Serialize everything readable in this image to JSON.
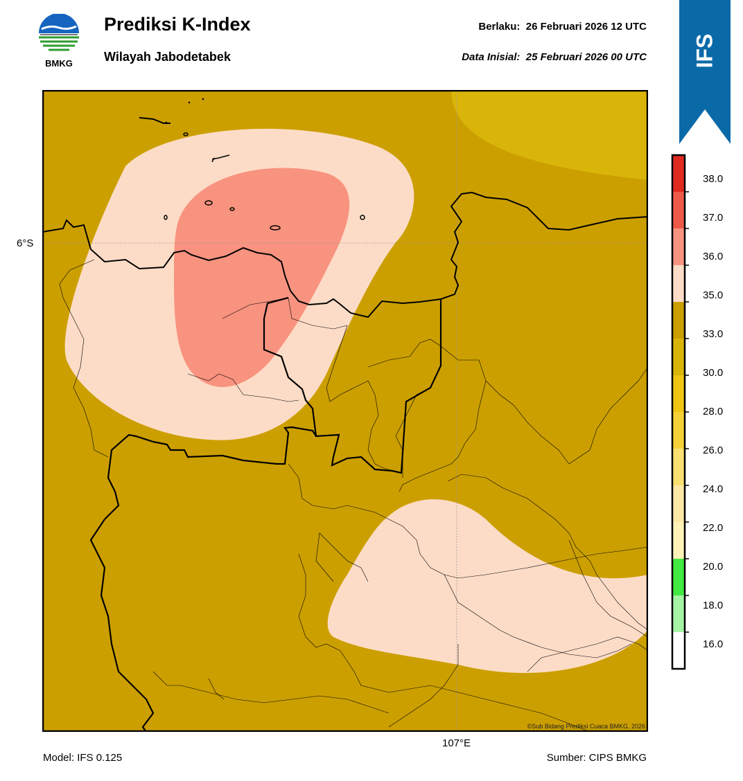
{
  "header": {
    "logo_text": "BMKG",
    "title": "Prediksi K-Index",
    "subtitle": "Wilayah Jabodetabek",
    "valid_label": "Berlaku:",
    "valid_value": "26 Februari 2026 12 UTC",
    "init_label": "Data Inisial:",
    "init_value": "25 Februari 2026 00 UTC"
  },
  "ribbon": {
    "label": "IFS",
    "color": "#0a6aa8"
  },
  "map": {
    "lat_label": "6°S",
    "lon_label": "107°E",
    "copyright": "©Sub Bidang Prediksi Cuaca BMKG, 2026"
  },
  "footer": {
    "model": "Model: IFS 0.125",
    "source": "Sumber: CIPS BMKG"
  },
  "legend": {
    "labels": [
      "38.0",
      "37.0",
      "36.0",
      "35.0",
      "33.0",
      "30.0",
      "28.0",
      "26.0",
      "24.0",
      "22.0",
      "20.0",
      "18.0",
      "16.0"
    ],
    "colors": {
      "above_38": "#e02a20",
      "37_38": "#ee5a47",
      "36_37": "#f8937f",
      "35_36": "#fddcc7",
      "33_35": "#cc9f00",
      "30_33": "#dab509",
      "28_30": "#efc514",
      "26_28": "#f5d137",
      "24_26": "#f9e070",
      "22_24": "#fde9a4",
      "20_22": "#fff3b8",
      "18_20": "#41ea41",
      "16_18": "#a4f4a4",
      "below_16": "#ffffff"
    }
  }
}
